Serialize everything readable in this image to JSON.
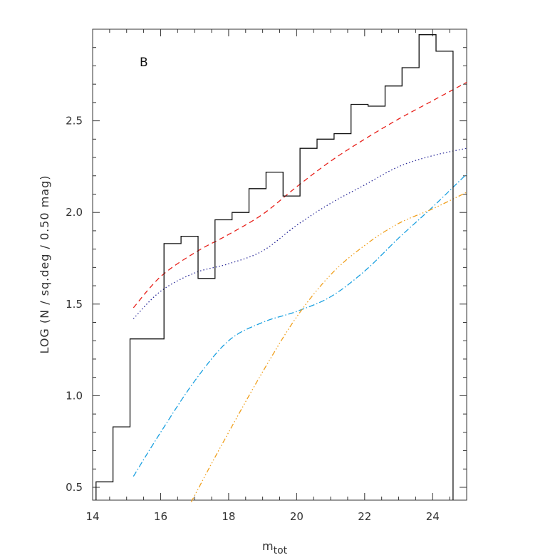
{
  "chart_data": {
    "type": "line",
    "panel_label": "B",
    "xlabel": "m",
    "xlabel_sub": "tot",
    "ylabel": "LOG (N / sq.deg / 0.50 mag)",
    "xlim": [
      14,
      25
    ],
    "ylim": [
      0.43,
      3.0
    ],
    "xticks": [
      14,
      16,
      18,
      20,
      22,
      24
    ],
    "xtick_labels": [
      "14",
      "16",
      "18",
      "20",
      "22",
      "24"
    ],
    "yticks": [
      0.5,
      1.0,
      1.5,
      2.0,
      2.5
    ],
    "ytick_labels": [
      "0.5",
      "1.0",
      "1.5",
      "2.0",
      "2.5"
    ],
    "grid": false,
    "histogram": {
      "bin_width": 0.5,
      "edges": [
        14.1,
        14.6,
        15.1,
        15.6,
        16.1,
        16.6,
        17.1,
        17.6,
        18.1,
        18.6,
        19.1,
        19.6,
        20.1,
        20.6,
        21.1,
        21.6,
        22.1,
        22.6,
        23.1,
        23.6,
        24.1,
        24.6
      ],
      "values": [
        0.53,
        0.83,
        1.31,
        1.31,
        1.83,
        1.87,
        1.64,
        1.96,
        2.0,
        2.13,
        2.22,
        2.09,
        2.35,
        2.4,
        2.43,
        2.59,
        2.58,
        2.69,
        2.79,
        2.97,
        2.88
      ],
      "drop_to": 0.43
    },
    "series": [
      {
        "color": "#e8201a",
        "dash": "7,5",
        "x": [
          15.2,
          16.0,
          17.0,
          18.0,
          19.0,
          20.0,
          21.0,
          22.0,
          23.0,
          24.0,
          25.0
        ],
        "y": [
          1.48,
          1.65,
          1.78,
          1.88,
          1.99,
          2.14,
          2.28,
          2.4,
          2.51,
          2.61,
          2.71
        ]
      },
      {
        "color": "#2b2b9a",
        "dash": "1.5,3",
        "x": [
          15.2,
          16.0,
          17.0,
          18.0,
          19.0,
          20.0,
          21.0,
          22.0,
          23.0,
          24.0,
          25.0
        ],
        "y": [
          1.42,
          1.57,
          1.67,
          1.72,
          1.79,
          1.93,
          2.05,
          2.15,
          2.25,
          2.31,
          2.35
        ]
      },
      {
        "color": "#1aa0e0",
        "dash": "8,3,1.5,3",
        "x": [
          15.2,
          16.0,
          17.0,
          18.0,
          19.0,
          20.0,
          21.0,
          22.0,
          23.0,
          24.0,
          25.0
        ],
        "y": [
          0.56,
          0.8,
          1.08,
          1.3,
          1.4,
          1.46,
          1.54,
          1.68,
          1.86,
          2.03,
          2.21
        ]
      },
      {
        "color": "#f0a01e",
        "dash": "7,3,1.5,3,1.5,3,1.5,3",
        "x": [
          16.9,
          17.5,
          18.0,
          19.0,
          20.0,
          21.0,
          22.0,
          23.0,
          24.0,
          25.0
        ],
        "y": [
          0.42,
          0.63,
          0.8,
          1.13,
          1.43,
          1.66,
          1.82,
          1.94,
          2.02,
          2.11
        ]
      }
    ]
  }
}
